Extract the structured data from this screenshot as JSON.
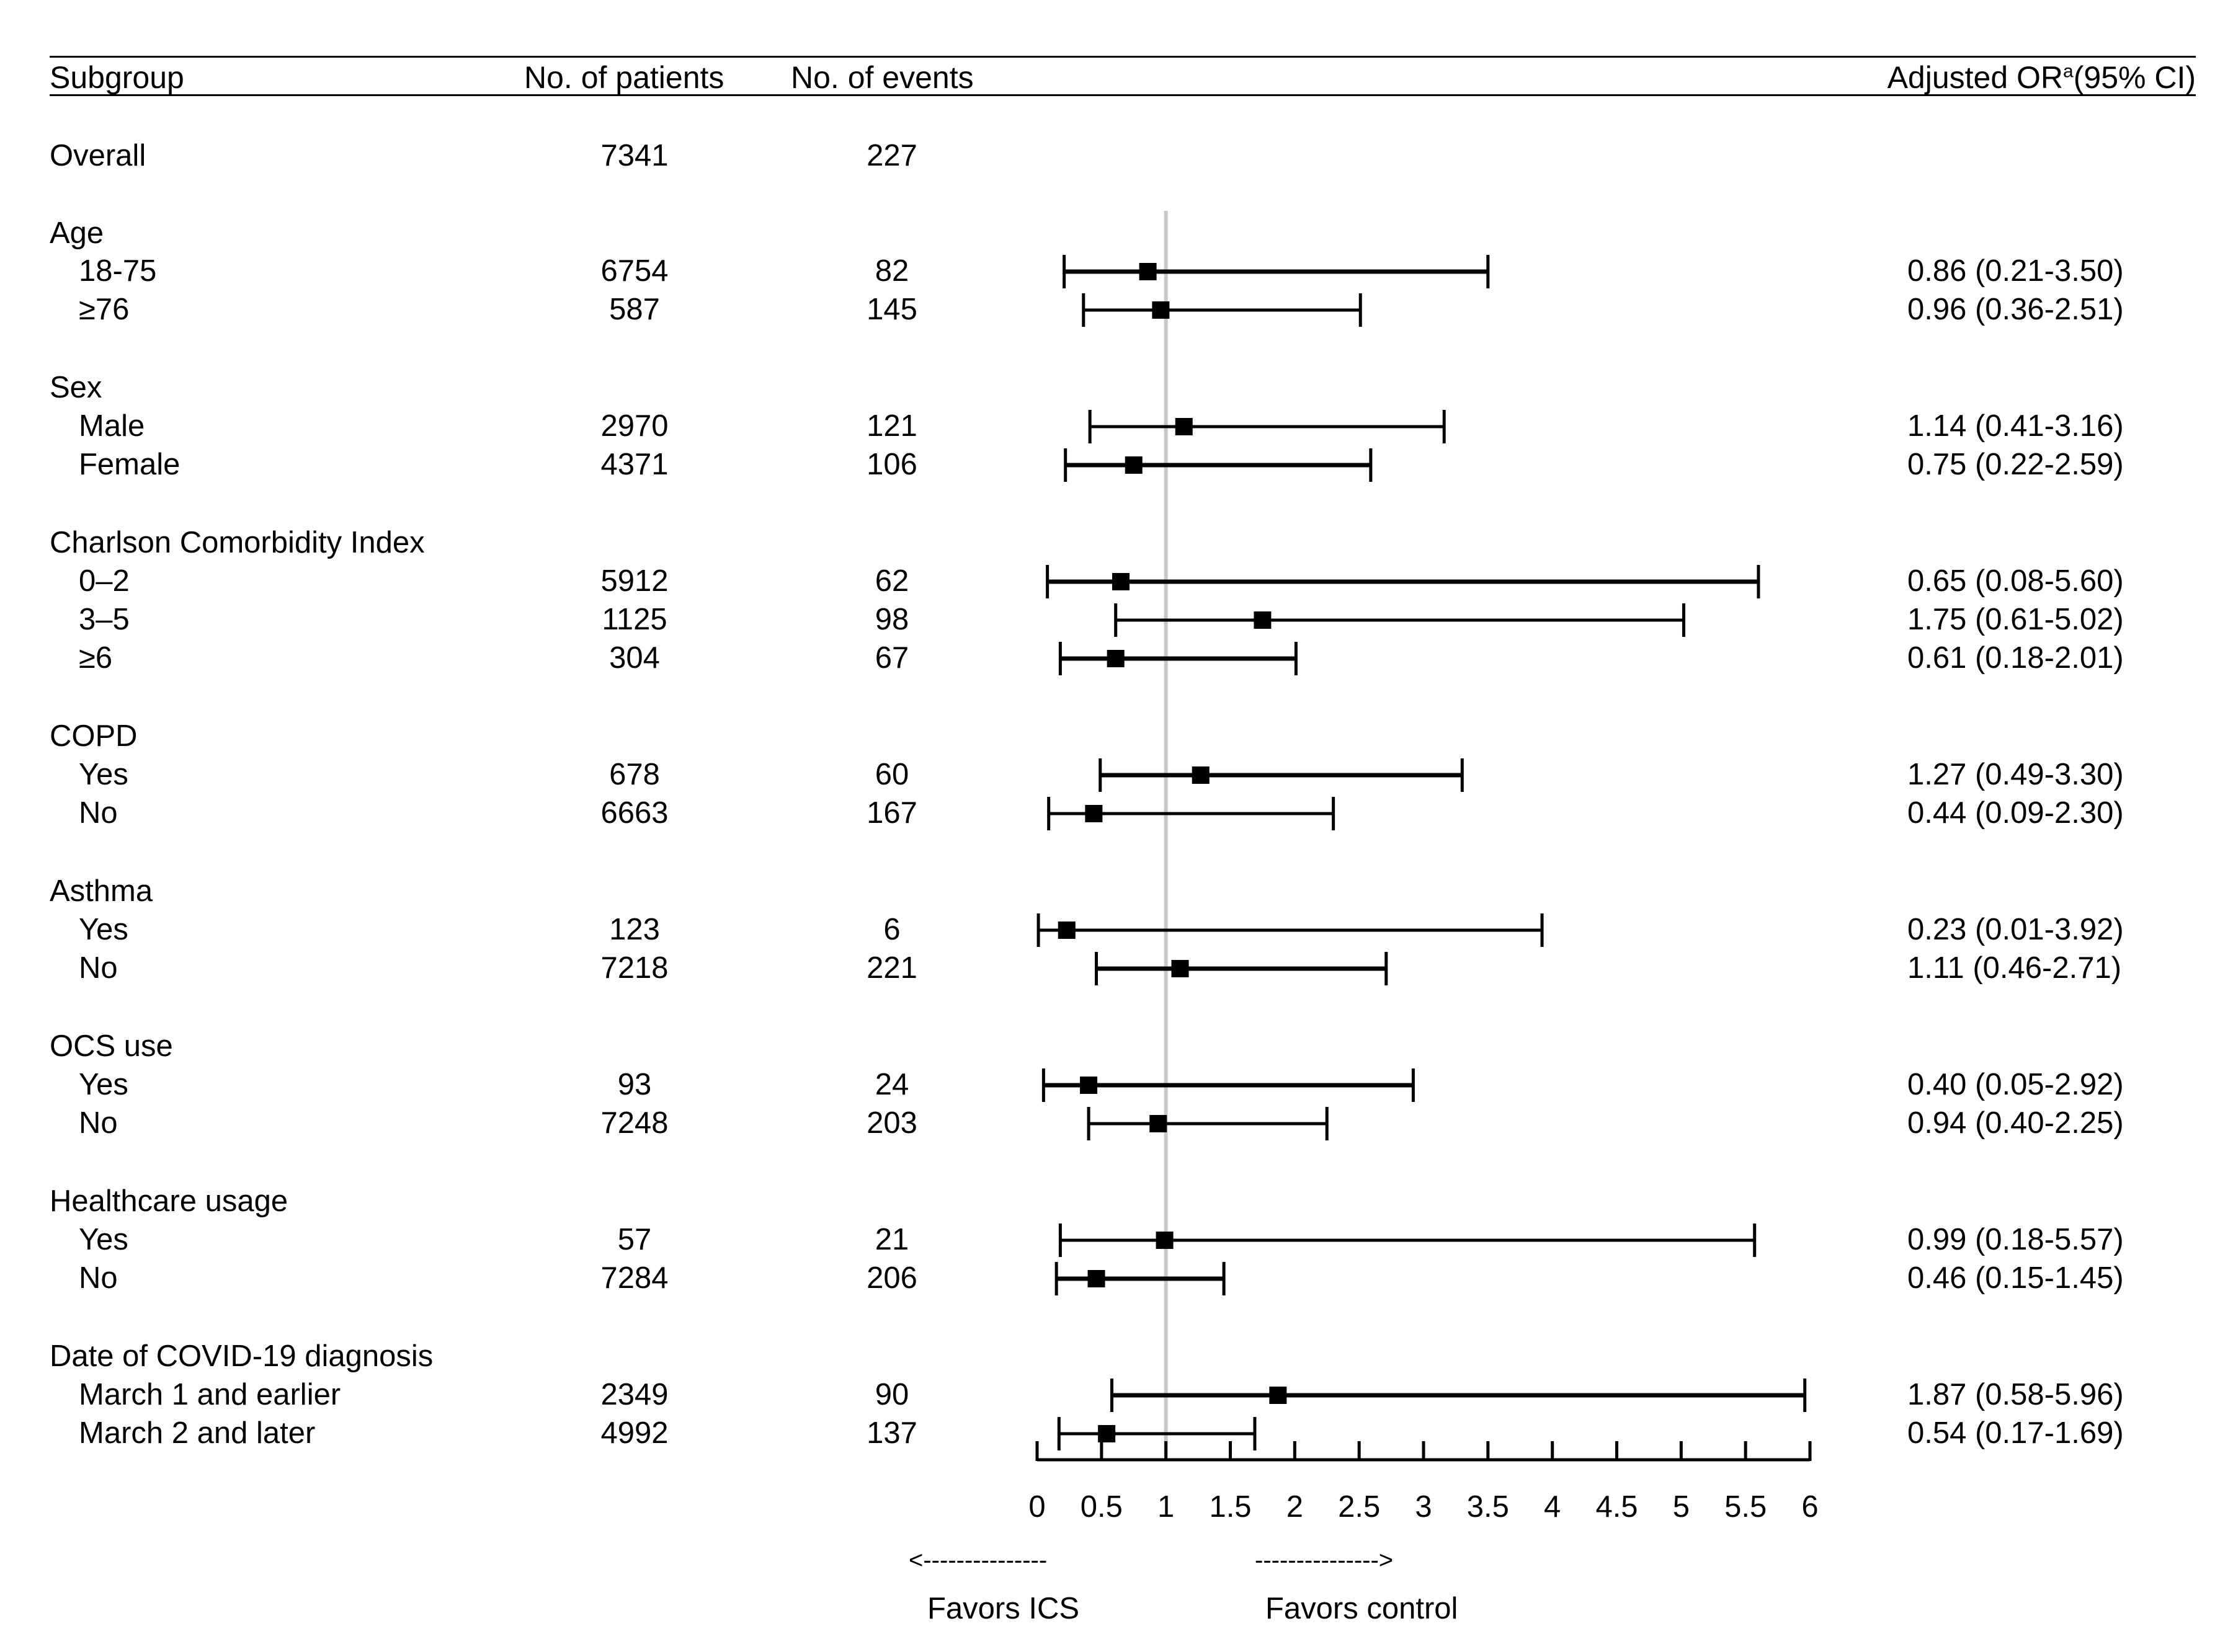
{
  "headers": {
    "subgroup": "Subgroup",
    "patients": "No. of patients",
    "events": "No. of events",
    "or_prefix": "Adjusted OR",
    "or_sup": "a",
    "or_suffix": "(95% CI)"
  },
  "rows": [
    {
      "label": "Overall",
      "kind": "group",
      "patients": "7341",
      "events": "227"
    },
    {
      "label": "Age",
      "kind": "group"
    },
    {
      "label": "18-75",
      "kind": "sub",
      "patients": "6754",
      "events": "82",
      "or": 0.86,
      "lo": 0.21,
      "hi": 3.5,
      "ci_text": "0.86 (0.21-3.50)"
    },
    {
      "label": "≥76",
      "kind": "sub",
      "patients": "587",
      "events": "145",
      "or": 0.96,
      "lo": 0.36,
      "hi": 2.51,
      "ci_text": "0.96 (0.36-2.51)"
    },
    {
      "label": "Sex",
      "kind": "group"
    },
    {
      "label": "Male",
      "kind": "sub",
      "patients": "2970",
      "events": "121",
      "or": 1.14,
      "lo": 0.41,
      "hi": 3.16,
      "ci_text": "1.14 (0.41-3.16)"
    },
    {
      "label": "Female",
      "kind": "sub",
      "patients": "4371",
      "events": "106",
      "or": 0.75,
      "lo": 0.22,
      "hi": 2.59,
      "ci_text": "0.75 (0.22-2.59)"
    },
    {
      "label": "Charlson Comorbidity Index",
      "kind": "group"
    },
    {
      "label": "0–2",
      "kind": "sub",
      "patients": "5912",
      "events": "62",
      "or": 0.65,
      "lo": 0.08,
      "hi": 5.6,
      "ci_text": "0.65 (0.08-5.60)"
    },
    {
      "label": "3–5",
      "kind": "sub",
      "patients": "1125",
      "events": "98",
      "or": 1.75,
      "lo": 0.61,
      "hi": 5.02,
      "ci_text": "1.75 (0.61-5.02)"
    },
    {
      "label": "≥6",
      "kind": "sub",
      "patients": "304",
      "events": "67",
      "or": 0.61,
      "lo": 0.18,
      "hi": 2.01,
      "ci_text": "0.61 (0.18-2.01)"
    },
    {
      "label": "COPD",
      "kind": "group"
    },
    {
      "label": "Yes",
      "kind": "sub",
      "patients": "678",
      "events": "60",
      "or": 1.27,
      "lo": 0.49,
      "hi": 3.3,
      "ci_text": "1.27 (0.49-3.30)"
    },
    {
      "label": "No",
      "kind": "sub",
      "patients": "6663",
      "events": "167",
      "or": 0.44,
      "lo": 0.09,
      "hi": 2.3,
      "ci_text": "0.44 (0.09-2.30)"
    },
    {
      "label": "Asthma",
      "kind": "group"
    },
    {
      "label": "Yes",
      "kind": "sub",
      "patients": "123",
      "events": "6",
      "or": 0.23,
      "lo": 0.01,
      "hi": 3.92,
      "ci_text": "0.23 (0.01-3.92)"
    },
    {
      "label": "No",
      "kind": "sub",
      "patients": "7218",
      "events": "221",
      "or": 1.11,
      "lo": 0.46,
      "hi": 2.71,
      "ci_text": "1.11 (0.46-2.71)"
    },
    {
      "label": "OCS use",
      "kind": "group"
    },
    {
      "label": "Yes",
      "kind": "sub",
      "patients": "93",
      "events": "24",
      "or": 0.4,
      "lo": 0.05,
      "hi": 2.92,
      "ci_text": "0.40 (0.05-2.92)"
    },
    {
      "label": "No",
      "kind": "sub",
      "patients": "7248",
      "events": "203",
      "or": 0.94,
      "lo": 0.4,
      "hi": 2.25,
      "ci_text": "0.94 (0.40-2.25)"
    },
    {
      "label": "Healthcare usage",
      "kind": "group"
    },
    {
      "label": "Yes",
      "kind": "sub",
      "patients": "57",
      "events": "21",
      "or": 0.99,
      "lo": 0.18,
      "hi": 5.57,
      "ci_text": "0.99 (0.18-5.57)"
    },
    {
      "label": "No",
      "kind": "sub",
      "patients": "7284",
      "events": "206",
      "or": 0.46,
      "lo": 0.15,
      "hi": 1.45,
      "ci_text": "0.46 (0.15-1.45)"
    },
    {
      "label": "Date of COVID-19 diagnosis",
      "kind": "group"
    },
    {
      "label": "March 1 and earlier",
      "kind": "sub",
      "patients": "2349",
      "events": "90",
      "or": 1.87,
      "lo": 0.58,
      "hi": 5.96,
      "ci_text": "1.87 (0.58-5.96)"
    },
    {
      "label": "March 2 and later",
      "kind": "sub",
      "patients": "4992",
      "events": "137",
      "or": 0.54,
      "lo": 0.17,
      "hi": 1.69,
      "ci_text": "0.54 (0.17-1.69)"
    }
  ],
  "chart_data": {
    "type": "forest",
    "xlabel": "",
    "xlim": [
      0,
      6
    ],
    "xticks": [
      "0",
      "0.5",
      "1",
      "1.5",
      "2",
      "2.5",
      "3",
      "3.5",
      "4",
      "4.5",
      "5",
      "5.5",
      "6"
    ],
    "reference_line": 1,
    "favor_left": "Favors ICS",
    "favor_left_arrow": "<---------------",
    "favor_right": "Favors control",
    "favor_right_arrow": "--------------->",
    "series": [
      {
        "name": "Adjusted OR",
        "categories": [
          "18-75",
          "≥76",
          "Male",
          "Female",
          "0–2",
          "3–5",
          "≥6",
          "COPD Yes",
          "COPD No",
          "Asthma Yes",
          "Asthma No",
          "OCS use Yes",
          "OCS use No",
          "Healthcare usage Yes",
          "Healthcare usage No",
          "March 1 and earlier",
          "March 2 and later"
        ],
        "values": [
          0.86,
          0.96,
          1.14,
          0.75,
          0.65,
          1.75,
          0.61,
          1.27,
          0.44,
          0.23,
          1.11,
          0.4,
          0.94,
          0.99,
          0.46,
          1.87,
          0.54
        ]
      }
    ]
  }
}
